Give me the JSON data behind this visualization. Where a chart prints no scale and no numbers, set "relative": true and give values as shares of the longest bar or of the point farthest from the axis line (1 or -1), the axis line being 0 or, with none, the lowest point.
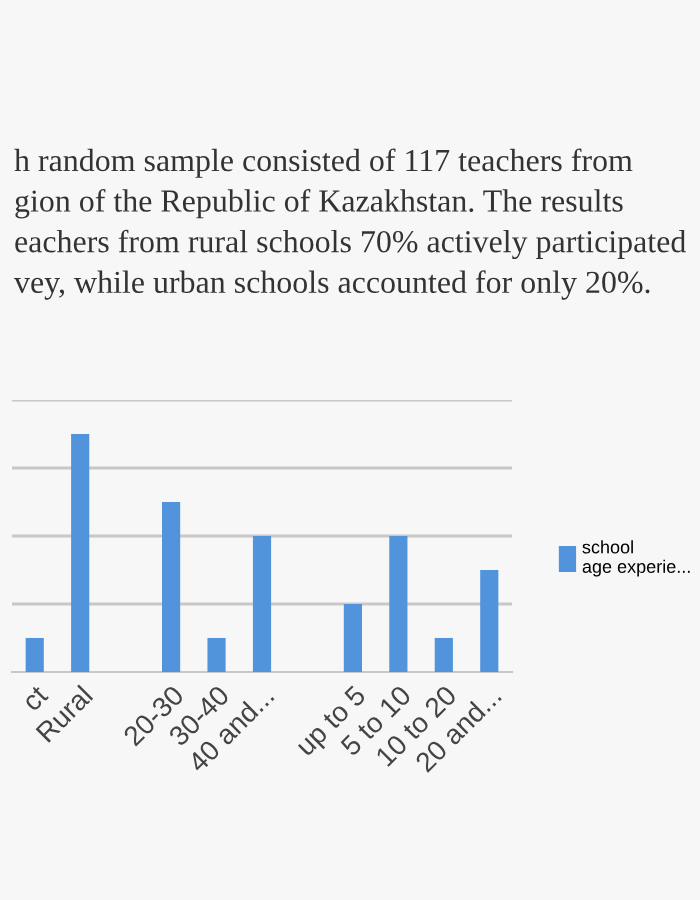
{
  "chart_data": {
    "type": "bar",
    "title": "h random sample consisted of 117 teachers from\ngion of the Republic of Kazakhstan. The results\neachers from rural schools 70% actively participated\nvey, while urban schools accounted for only 20%.",
    "categories": [
      "ct",
      "Rural",
      null,
      "20-30",
      "30-40",
      "40 and...",
      null,
      "up to 5",
      "5 to 10",
      "10 to 20",
      "20 and..."
    ],
    "series": [
      {
        "name": "school\nage experie...",
        "color": "#5294dc",
        "values": [
          0.143,
          1,
          null,
          0.714,
          0.143,
          0.571,
          null,
          0.286,
          0.571,
          0.143,
          0.429
        ]
      }
    ],
    "relative": true,
    "grid": "y",
    "legend": "right"
  }
}
